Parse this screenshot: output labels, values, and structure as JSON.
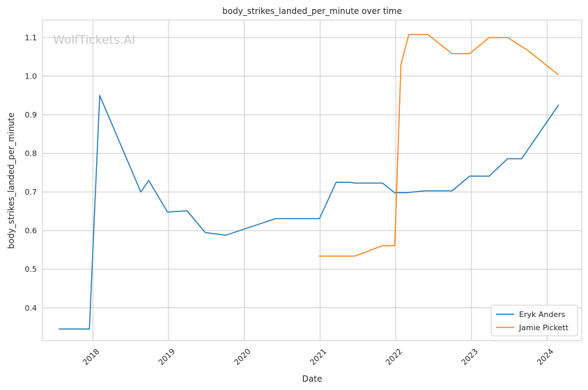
{
  "chart_data": {
    "type": "line",
    "title": "body_strikes_landed_per_minute over time",
    "xlabel": "Date",
    "ylabel": "body_strikes_landed_per_minute",
    "x_tick_labels": [
      "2018",
      "2019",
      "2020",
      "2021",
      "2022",
      "2023",
      "2024"
    ],
    "y_tick_labels": [
      "0.4",
      "0.5",
      "0.6",
      "0.7",
      "0.8",
      "0.9",
      "1.0",
      "1.1"
    ],
    "xlim": [
      "2017-05-03",
      "2024-06-16"
    ],
    "ylim": [
      0.315,
      1.145
    ],
    "grid": true,
    "legend_position": "lower-right",
    "watermark": "WolfTickets.AI",
    "series": [
      {
        "name": "Eryk Anders",
        "color": "#1f77b4",
        "points": [
          {
            "x": "2017-07-20",
            "y": 0.345
          },
          {
            "x": "2017-12-15",
            "y": 0.345
          },
          {
            "x": "2018-02-03",
            "y": 0.95
          },
          {
            "x": "2018-08-20",
            "y": 0.7
          },
          {
            "x": "2018-09-27",
            "y": 0.73
          },
          {
            "x": "2018-12-27",
            "y": 0.648
          },
          {
            "x": "2019-04-01",
            "y": 0.651
          },
          {
            "x": "2019-06-27",
            "y": 0.595
          },
          {
            "x": "2019-10-03",
            "y": 0.588
          },
          {
            "x": "2020-05-31",
            "y": 0.631
          },
          {
            "x": "2020-12-29",
            "y": 0.631
          },
          {
            "x": "2021-03-19",
            "y": 0.725
          },
          {
            "x": "2021-05-28",
            "y": 0.725
          },
          {
            "x": "2021-06-18",
            "y": 0.723
          },
          {
            "x": "2021-10-29",
            "y": 0.723
          },
          {
            "x": "2021-12-27",
            "y": 0.698
          },
          {
            "x": "2022-02-19",
            "y": 0.698
          },
          {
            "x": "2022-05-23",
            "y": 0.703
          },
          {
            "x": "2022-09-30",
            "y": 0.703
          },
          {
            "x": "2022-12-23",
            "y": 0.741
          },
          {
            "x": "2023-03-27",
            "y": 0.741
          },
          {
            "x": "2023-06-24",
            "y": 0.786
          },
          {
            "x": "2023-08-31",
            "y": 0.786
          },
          {
            "x": "2024-02-26",
            "y": 0.926
          }
        ]
      },
      {
        "name": "Jamie Pickett",
        "color": "#ff7f0e",
        "points": [
          {
            "x": "2020-12-26",
            "y": 0.534
          },
          {
            "x": "2021-06-18",
            "y": 0.534
          },
          {
            "x": "2021-10-29",
            "y": 0.561
          },
          {
            "x": "2021-12-27",
            "y": 0.561
          },
          {
            "x": "2022-01-26",
            "y": 1.03
          },
          {
            "x": "2022-03-05",
            "y": 1.108
          },
          {
            "x": "2022-06-04",
            "y": 1.108
          },
          {
            "x": "2022-09-30",
            "y": 1.058
          },
          {
            "x": "2022-12-23",
            "y": 1.058
          },
          {
            "x": "2023-03-27",
            "y": 1.1
          },
          {
            "x": "2023-06-24",
            "y": 1.1
          },
          {
            "x": "2023-09-29",
            "y": 1.067
          },
          {
            "x": "2024-02-26",
            "y": 1.003
          }
        ]
      }
    ]
  }
}
